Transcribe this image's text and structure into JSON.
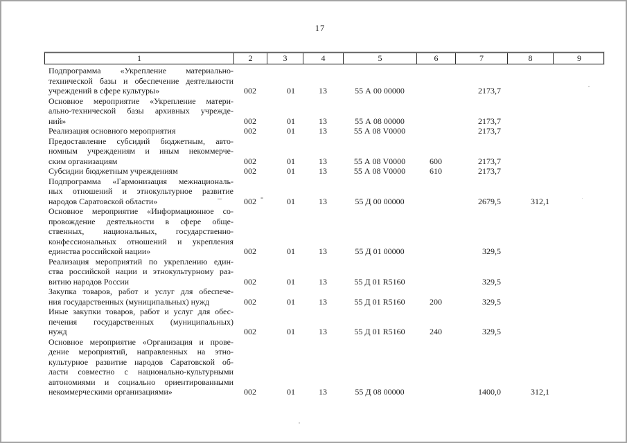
{
  "page": {
    "number": "17"
  },
  "colors": {
    "paper": "#ffffff",
    "ink": "#1c1c1c",
    "border": "#2e2e2e",
    "scan_edge": "#a3a3a3"
  },
  "table": {
    "header_labels": [
      "1",
      "2",
      "3",
      "4",
      "5",
      "6",
      "7",
      "8",
      "9"
    ],
    "rows": [
      {
        "name_lines": [
          "Подпрограмма «Укрепление материально-",
          "технической базы и обеспечение деятельности",
          "учреждений в сфере культуры»"
        ],
        "cols": [
          "002",
          "01",
          "13",
          "55 А 00 00000",
          "",
          "2173,7",
          "",
          ""
        ]
      },
      {
        "name_lines": [
          "Основное мероприятие «Укрепление матери-",
          "ально-технической базы архивных учрежде-",
          "ний»"
        ],
        "cols": [
          "002",
          "01",
          "13",
          "55 А 08 00000",
          "",
          "2173,7",
          "",
          ""
        ]
      },
      {
        "name_lines": [
          "Реализация основного мероприятия"
        ],
        "cols": [
          "002",
          "01",
          "13",
          "55 А 08 V0000",
          "",
          "2173,7",
          "",
          ""
        ]
      },
      {
        "name_lines": [
          "Предоставление субсидий бюджетным, авто-",
          "номным учреждениям и иным некоммерче-",
          "ским организациям"
        ],
        "cols": [
          "002",
          "01",
          "13",
          "55 А 08 V0000",
          "600",
          "2173,7",
          "",
          ""
        ]
      },
      {
        "name_lines": [
          "Субсидии бюджетным учреждениям"
        ],
        "cols": [
          "002",
          "01",
          "13",
          "55 А 08 V0000",
          "610",
          "2173,7",
          "",
          ""
        ]
      },
      {
        "name_lines": [
          "Подпрограмма «Гармонизация межнациональ-",
          "ных отношений и этнокультурное развитие",
          "народов Саратовской области»"
        ],
        "cols": [
          "002",
          "01",
          "13",
          "55 Д 00 00000",
          "",
          "2679,5",
          "312,1",
          ""
        ]
      },
      {
        "name_lines": [
          "Основное мероприятие «Информационное со-",
          "провождение деятельности в сфере обще-",
          "ственных, национальных, государственно-",
          "конфессиональных отношений и укрепления",
          "единства российской нации»"
        ],
        "cols": [
          "002",
          "01",
          "13",
          "55 Д 01 00000",
          "",
          "329,5",
          "",
          ""
        ]
      },
      {
        "name_lines": [
          "Реализация мероприятий по укреплению един-",
          "ства российской нации и этнокультурному раз-",
          "витию народов России"
        ],
        "cols": [
          "002",
          "01",
          "13",
          "55 Д 01 R5160",
          "",
          "329,5",
          "",
          ""
        ]
      },
      {
        "name_lines": [
          "Закупка товаров, работ и услуг для обеспече-",
          "ния государственных (муниципальных) нужд"
        ],
        "cols": [
          "002",
          "01",
          "13",
          "55 Д 01 R5160",
          "200",
          "329,5",
          "",
          ""
        ]
      },
      {
        "name_lines": [
          "Иные закупки товаров, работ и услуг для обес-",
          "печения государственных (муниципальных)",
          "нужд"
        ],
        "cols": [
          "002",
          "01",
          "13",
          "55 Д 01 R5160",
          "240",
          "329,5",
          "",
          ""
        ]
      },
      {
        "name_lines": [
          "Основное мероприятие «Организация и прове-",
          "дение мероприятий, направленных на этно-",
          "культурное развитие народов Саратовской об-",
          "ласти совместно с национально-культурными",
          "автономиями и социально ориентированными",
          "некоммерческими организациями»"
        ],
        "cols": [
          "002",
          "01",
          "13",
          "55 Д 08 00000",
          "",
          "1400,0",
          "312,1",
          ""
        ]
      }
    ]
  },
  "artifacts": {
    "dash_long": "–",
    "dash_short": "-"
  }
}
